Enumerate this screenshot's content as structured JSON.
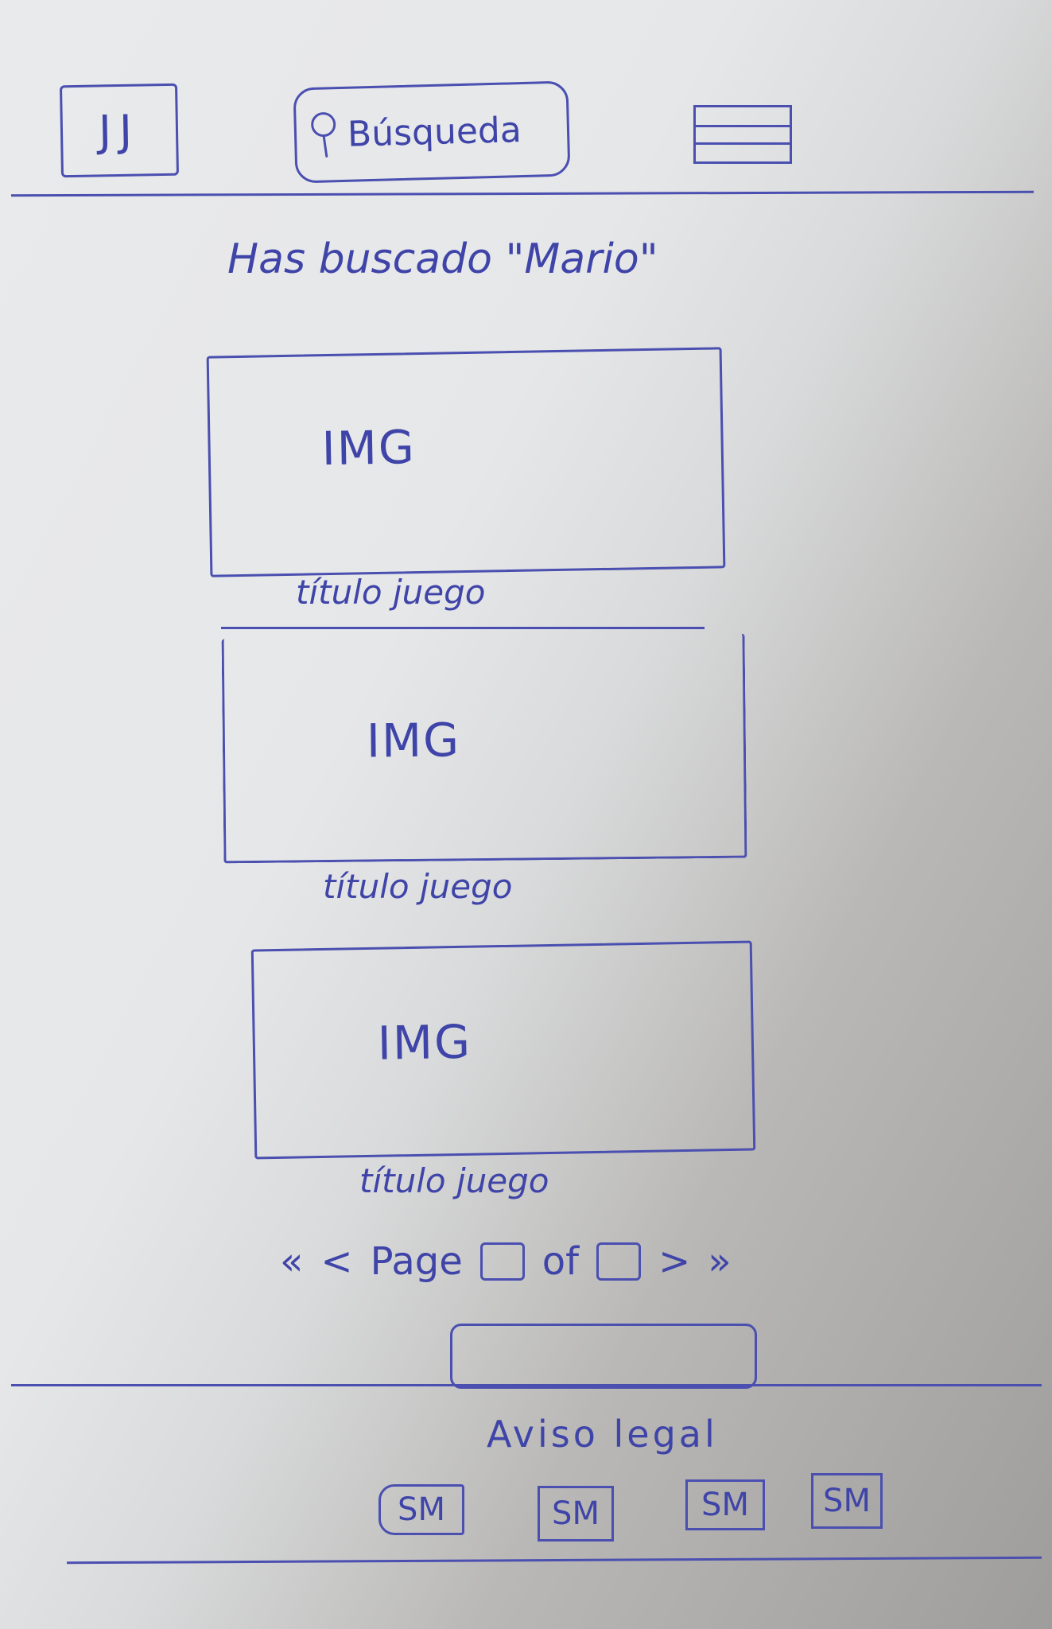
{
  "header": {
    "logo_text": "JJ",
    "search_label": "Búsqueda",
    "menu_icon": "hamburger-menu-icon"
  },
  "results": {
    "heading": "Has buscado \"Mario\""
  },
  "cards": [
    {
      "image_label": "IMG",
      "title": "título juego"
    },
    {
      "image_label": "IMG",
      "title": "título juego"
    },
    {
      "image_label": "IMG",
      "title": "título juego"
    }
  ],
  "pagination": {
    "first": "«",
    "prev": "<",
    "page_label": "Page",
    "of_label": "of",
    "next": ">",
    "last": "»"
  },
  "footer": {
    "legal": "Aviso legal",
    "social": [
      "SM",
      "SM",
      "SM",
      "SM"
    ]
  },
  "colors": {
    "ink": "#3f44a8",
    "paper": "#e9eaec"
  }
}
